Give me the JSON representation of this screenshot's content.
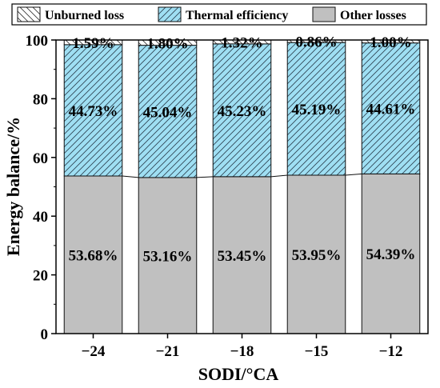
{
  "chart_data": {
    "type": "bar",
    "stacked": true,
    "title": "",
    "xlabel": "SODI/°CA",
    "ylabel": "Energy balance/%",
    "ylim": [
      0,
      100
    ],
    "yticks": [
      0,
      20,
      40,
      60,
      80,
      100
    ],
    "grid": false,
    "legend_position": "top",
    "categories": [
      "−24",
      "−21",
      "−18",
      "−15",
      "−12"
    ],
    "series": [
      {
        "name": "Other losses",
        "values": [
          53.68,
          53.16,
          53.45,
          53.95,
          54.39
        ],
        "labels": [
          "53.68%",
          "53.16%",
          "53.45%",
          "53.95%",
          "54.39%"
        ],
        "color": "#c0c0c0",
        "pattern": "solid"
      },
      {
        "name": "Thermal efficiency",
        "values": [
          44.73,
          45.04,
          45.23,
          45.19,
          44.61
        ],
        "labels": [
          "44.73%",
          "45.04%",
          "45.23%",
          "45.19%",
          "44.61%"
        ],
        "color": "#9fdff3",
        "pattern": "hatch"
      },
      {
        "name": "Unburned loss",
        "values": [
          1.59,
          1.8,
          1.32,
          0.86,
          1.0
        ],
        "labels": [
          "1.59%",
          "1.80%",
          "1.32%",
          "0.86%",
          "1.00%"
        ],
        "color": "#ffffff",
        "pattern": "hatch"
      }
    ],
    "legend_order": [
      "Unburned loss",
      "Thermal efficiency",
      "Other losses"
    ]
  }
}
